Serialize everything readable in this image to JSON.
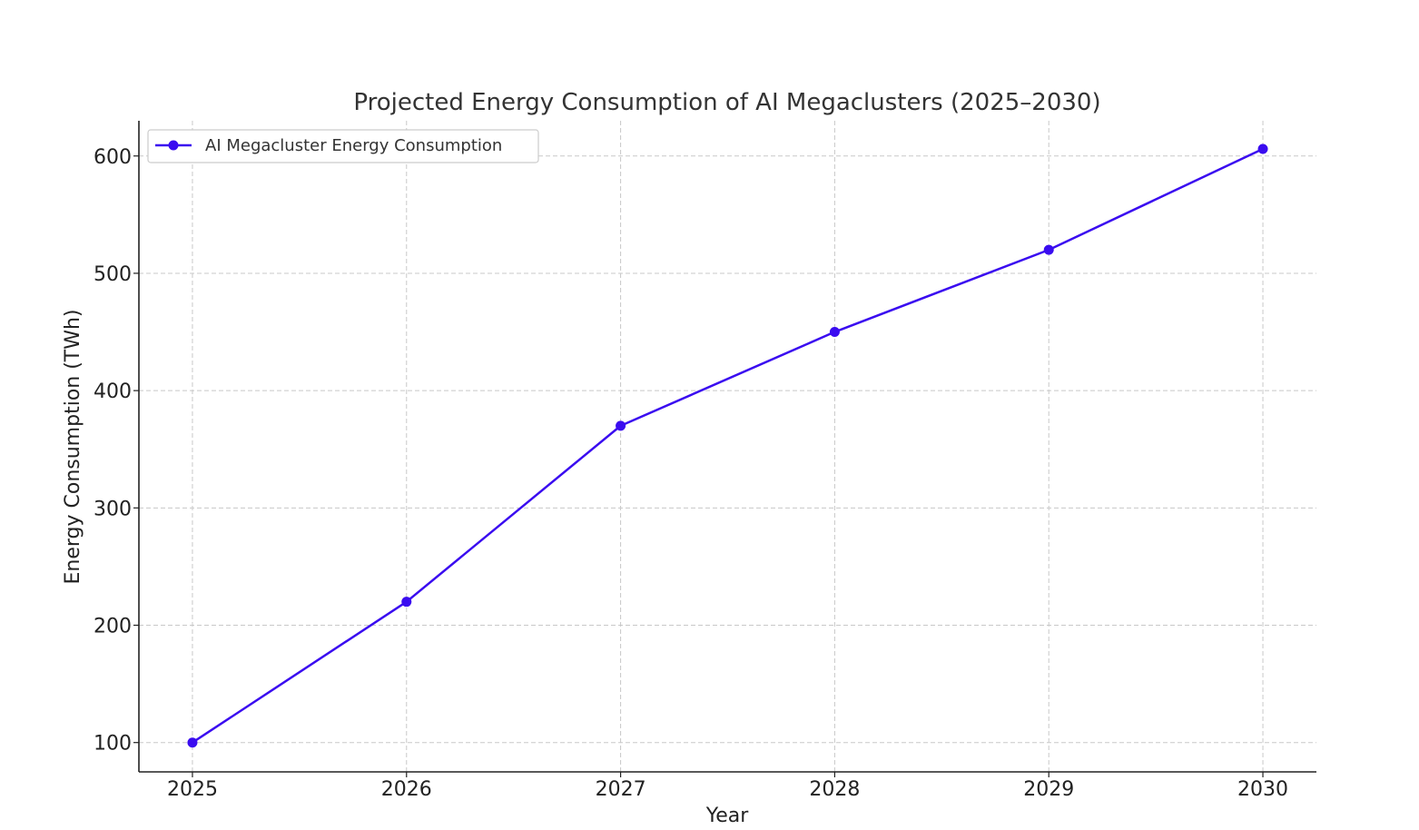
{
  "chart_data": {
    "type": "line",
    "title": "Projected Energy Consumption of AI Megaclusters (2025–2030)",
    "xlabel": "Year",
    "ylabel": "Energy Consumption (TWh)",
    "x": [
      2025,
      2026,
      2027,
      2028,
      2029,
      2030
    ],
    "x_tick_labels": [
      "2025",
      "2026",
      "2027",
      "2028",
      "2029",
      "2030"
    ],
    "y_ticks": [
      100,
      200,
      300,
      400,
      500,
      600
    ],
    "y_tick_labels": [
      "100",
      "200",
      "300",
      "400",
      "500",
      "600"
    ],
    "xlim": [
      2024.75,
      2030.25
    ],
    "ylim": [
      75,
      630
    ],
    "grid": true,
    "legend_position": "top-left",
    "series": [
      {
        "name": "AI Megacluster Energy Consumption",
        "color": "#3a0cf0",
        "marker": "circle",
        "values": [
          100,
          220,
          370,
          450,
          520,
          606
        ]
      }
    ]
  }
}
